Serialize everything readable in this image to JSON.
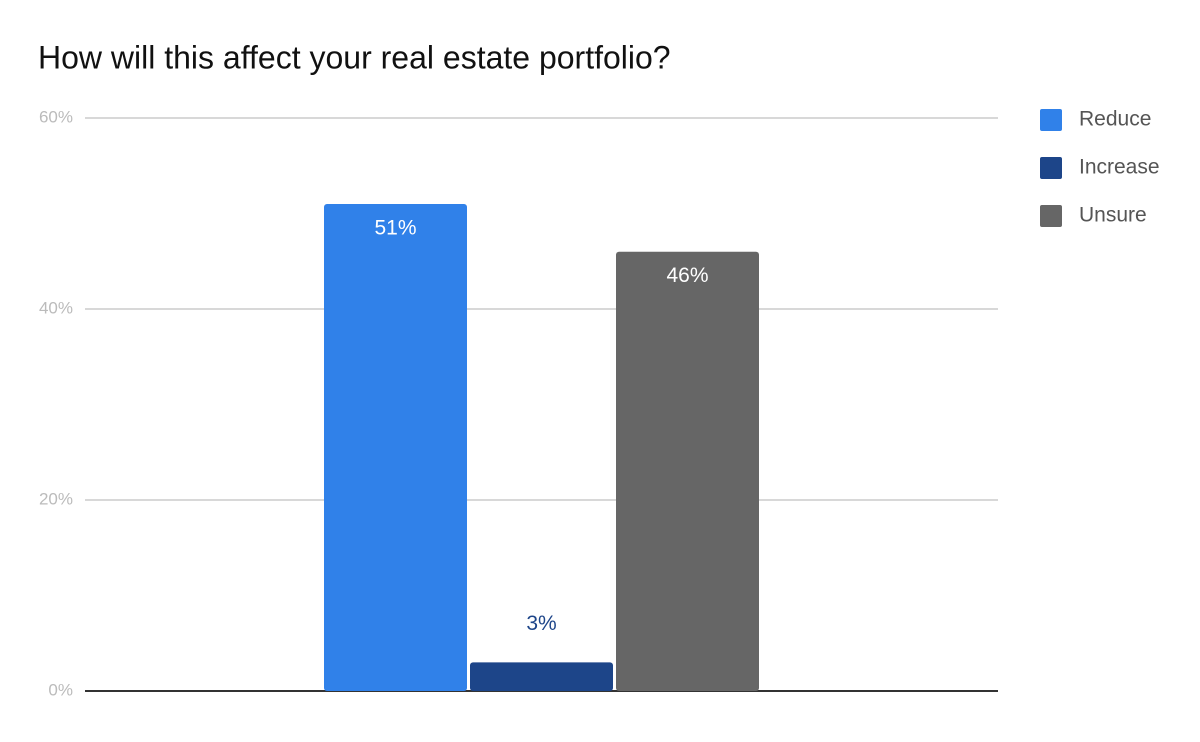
{
  "chart_data": {
    "type": "bar",
    "title": "How will this affect your real estate portfolio?",
    "categories": [
      null
    ],
    "series": [
      {
        "name": "Reduce",
        "color": "#3081e9",
        "values": [
          51
        ],
        "value_labels": [
          "51%"
        ]
      },
      {
        "name": "Increase",
        "color": "#1d4589",
        "values": [
          3
        ],
        "value_labels": [
          "3%"
        ]
      },
      {
        "name": "Unsure",
        "color": "#666666",
        "values": [
          46
        ],
        "value_labels": [
          "46%"
        ]
      }
    ],
    "ylim": [
      0,
      60
    ],
    "yticks": [
      {
        "value": 0,
        "label": "0%"
      },
      {
        "value": 20,
        "label": "20%"
      },
      {
        "value": 40,
        "label": "40%"
      },
      {
        "value": 60,
        "label": "60%"
      }
    ],
    "grid": true,
    "legend": "right"
  }
}
